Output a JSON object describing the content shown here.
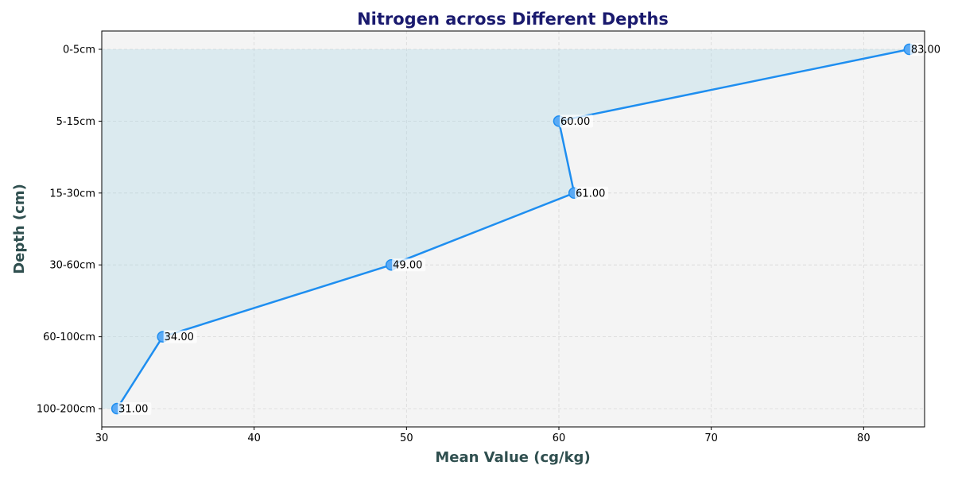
{
  "chart_data": {
    "type": "line",
    "title": "Nitrogen across Different Depths",
    "xlabel": "Mean Value (cg/kg)",
    "ylabel": "Depth (cm)",
    "categories": [
      "0-5cm",
      "5-15cm",
      "15-30cm",
      "30-60cm",
      "60-100cm",
      "100-200cm"
    ],
    "values": [
      83.0,
      60.0,
      61.0,
      49.0,
      34.0,
      31.0
    ],
    "data_labels": [
      "83.00",
      "60.00",
      "61.00",
      "49.00",
      "34.00",
      "31.00"
    ],
    "xlim": [
      30,
      84
    ],
    "xticks": [
      30,
      40,
      50,
      60,
      70,
      80
    ],
    "grid": true,
    "fill": "area between line and left axis",
    "colors": {
      "line": "#1e8ef0",
      "marker": "#5aaaf5",
      "fill": "#add8e6",
      "plot_background": "#f4f4f4",
      "title": "#1a1a6e",
      "axis_title": "#2f4f4f",
      "grid": "#d8d8d8"
    }
  }
}
